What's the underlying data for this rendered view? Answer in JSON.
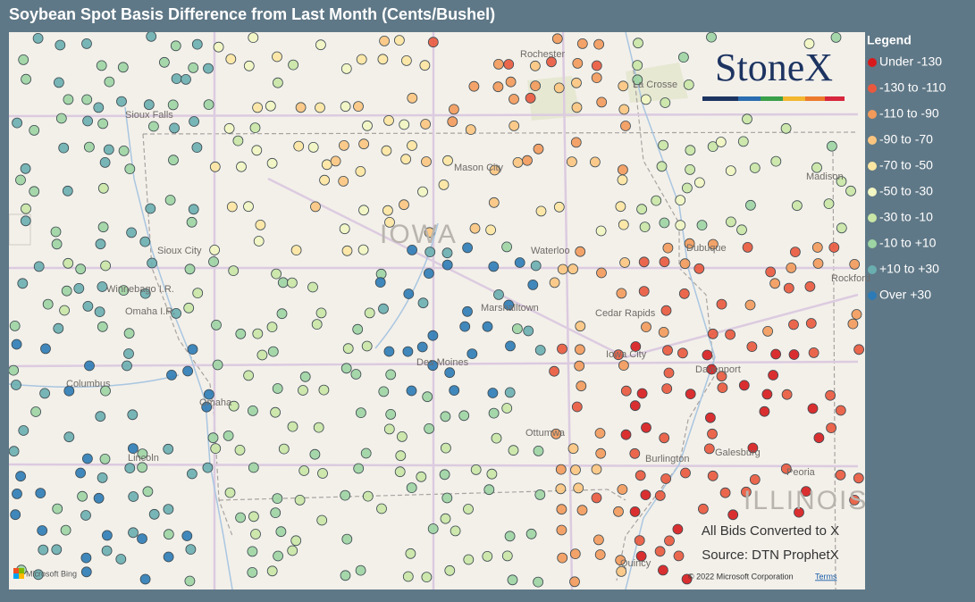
{
  "header": {
    "title": "Soybean Spot Basis Difference from Last Month (Cents/Bushel)"
  },
  "legend": {
    "title": "Legend",
    "items": [
      {
        "label": "Under -130",
        "color": "#d7191c"
      },
      {
        "label": "-130 to -110",
        "color": "#e9583d"
      },
      {
        "label": "-110 to -90",
        "color": "#f39a5b"
      },
      {
        "label": "-90 to -70",
        "color": "#fcc57f"
      },
      {
        "label": "-70 to -50",
        "color": "#fde6a2"
      },
      {
        "label": "-50 to -30",
        "color": "#f2f6c2"
      },
      {
        "label": "-30 to -10",
        "color": "#c9e6a6"
      },
      {
        "label": "-10 to +10",
        "color": "#9dd4a3"
      },
      {
        "label": "+10 to +30",
        "color": "#6aaeb0"
      },
      {
        "label": "Over +30",
        "color": "#2c7bb6"
      }
    ]
  },
  "logo": "StoneX",
  "map": {
    "labels": [
      "Rochester",
      "La Crosse",
      "Sioux Falls",
      "Mason City",
      "IOWA",
      "Waterloo",
      "Sioux City",
      "Winnebago I.R.",
      "Omaha I.R.",
      "Cedar Rapids",
      "Marshalltown",
      "Dubuque",
      "Madison",
      "Rockford",
      "Columbus",
      "Omaha",
      "Des Moines",
      "Iowa City",
      "Davenport",
      "Ottumwa",
      "Burlington",
      "Galesburg",
      "Peoria",
      "Lincoln",
      "ILLINOIS",
      "Quincy"
    ]
  },
  "notes": [
    "All Bids Converted to X",
    "Source: DTN ProphetX"
  ],
  "attribution": {
    "provider": "Microsoft Bing",
    "copyright": "© 2022 Microsoft Corporation",
    "terms": "Terms"
  }
}
